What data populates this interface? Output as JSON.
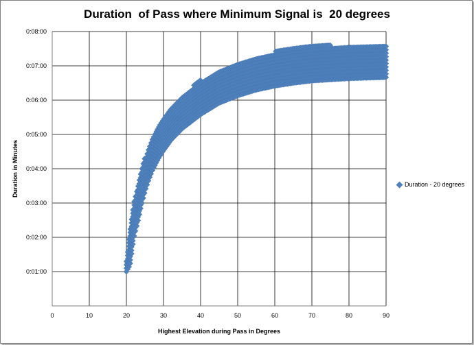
{
  "chart_data": {
    "type": "scatter",
    "title": "Duration  of Pass where Minimum Signal is  20 degrees",
    "xlabel": "Highest Elevation during Pass  in Degrees",
    "ylabel": "Duration  in Minutes",
    "xlim": [
      0,
      90
    ],
    "ylim": [
      0,
      480
    ],
    "x_ticks": [
      "0",
      "10",
      "20",
      "30",
      "40",
      "50",
      "60",
      "70",
      "80",
      "90"
    ],
    "y_ticks": [
      "",
      "0:01:00",
      "0:02:00",
      "0:03:00",
      "0:04:00",
      "0:05:00",
      "0:06:00",
      "0:07:00",
      "0:08:00"
    ],
    "grid": true,
    "legend_position": "right",
    "series": [
      {
        "name": "Duration - 20 degrees",
        "color": "#4f81bd",
        "marker": "diamond",
        "upper_envelope_seconds": [
          [
            20,
            80
          ],
          [
            21,
            135
          ],
          [
            22,
            180
          ],
          [
            23,
            210
          ],
          [
            24,
            235
          ],
          [
            25,
            260
          ],
          [
            26,
            278
          ],
          [
            27,
            292
          ],
          [
            28,
            305
          ],
          [
            29,
            316
          ],
          [
            30,
            327
          ],
          [
            32,
            345
          ],
          [
            35,
            368
          ],
          [
            38,
            385
          ],
          [
            40,
            395
          ],
          [
            45,
            413
          ],
          [
            50,
            427
          ],
          [
            55,
            437
          ],
          [
            60,
            445
          ],
          [
            65,
            450
          ],
          [
            70,
            454
          ],
          [
            75,
            456
          ],
          [
            80,
            457
          ],
          [
            85,
            458
          ],
          [
            90,
            458
          ]
        ],
        "lower_envelope_seconds": [
          [
            20,
            60
          ],
          [
            21,
            72
          ],
          [
            22,
            120
          ],
          [
            23,
            145
          ],
          [
            24,
            175
          ],
          [
            25,
            200
          ],
          [
            26,
            220
          ],
          [
            27,
            237
          ],
          [
            28,
            250
          ],
          [
            29,
            262
          ],
          [
            30,
            272
          ],
          [
            32,
            290
          ],
          [
            35,
            310
          ],
          [
            38,
            325
          ],
          [
            40,
            335
          ],
          [
            45,
            355
          ],
          [
            50,
            368
          ],
          [
            55,
            378
          ],
          [
            60,
            385
          ],
          [
            65,
            390
          ],
          [
            70,
            394
          ],
          [
            75,
            396
          ],
          [
            80,
            398
          ],
          [
            85,
            399
          ],
          [
            90,
            400
          ]
        ]
      }
    ]
  }
}
